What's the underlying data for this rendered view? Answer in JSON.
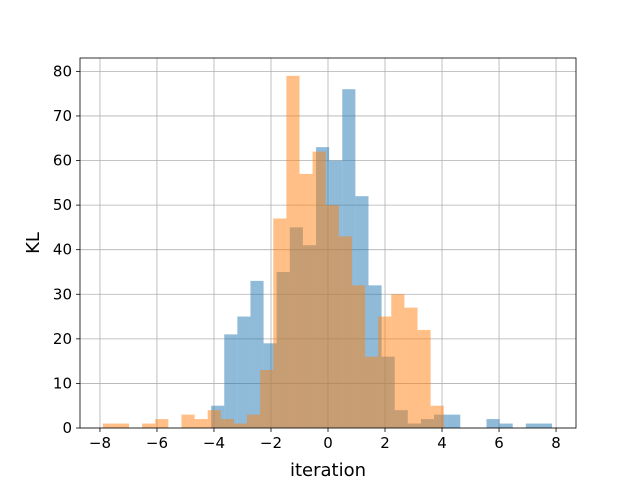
{
  "chart_data": {
    "type": "bar",
    "subtype": "overlapping-histogram",
    "title": "",
    "xlabel": "iteration",
    "ylabel": "KL",
    "xlim": [
      -8.7,
      8.7
    ],
    "ylim": [
      0,
      83
    ],
    "xticks": [
      -8,
      -6,
      -4,
      -2,
      0,
      2,
      4,
      6,
      8
    ],
    "xtick_labels": [
      "−8",
      "−6",
      "−4",
      "−2",
      "0",
      "2",
      "4",
      "6",
      "8"
    ],
    "yticks": [
      0,
      10,
      20,
      30,
      40,
      50,
      60,
      70,
      80
    ],
    "ytick_labels": [
      "0",
      "10",
      "20",
      "30",
      "40",
      "50",
      "60",
      "70",
      "80"
    ],
    "grid": true,
    "legend": "none",
    "series": [
      {
        "color": "#1f77b4",
        "alpha": 0.5,
        "bin_width": 0.46,
        "bin_starts": [
          -4.1,
          -3.64,
          -3.18,
          -2.72,
          -2.26,
          -1.8,
          -1.34,
          -0.88,
          -0.42,
          0.04,
          0.5,
          0.96,
          1.42,
          1.88,
          2.34,
          2.8,
          3.26,
          3.72,
          4.18,
          4.64,
          5.1,
          5.56,
          6.02,
          6.48,
          6.94,
          7.4
        ],
        "values": [
          5,
          21,
          25,
          33,
          19,
          35,
          45,
          41,
          63,
          60,
          76,
          52,
          32,
          16,
          4,
          1,
          2,
          3,
          3,
          0,
          0,
          2,
          1,
          0,
          1,
          1
        ]
      },
      {
        "color": "#ff7f0e",
        "alpha": 0.5,
        "bin_width": 0.46,
        "bin_starts": [
          -7.9,
          -7.44,
          -6.98,
          -6.52,
          -6.06,
          -5.6,
          -5.14,
          -4.68,
          -4.22,
          -3.76,
          -3.3,
          -2.84,
          -2.38,
          -1.92,
          -1.46,
          -1.0,
          -0.54,
          -0.08,
          0.38,
          0.84,
          1.3,
          1.76,
          2.22,
          2.68,
          3.14,
          3.6
        ],
        "values": [
          1,
          1,
          0,
          1,
          2,
          0,
          3,
          2,
          4,
          2,
          1,
          3,
          13,
          47,
          79,
          57,
          62,
          50,
          43,
          32,
          16,
          25,
          30,
          27,
          22,
          5
        ]
      }
    ]
  }
}
